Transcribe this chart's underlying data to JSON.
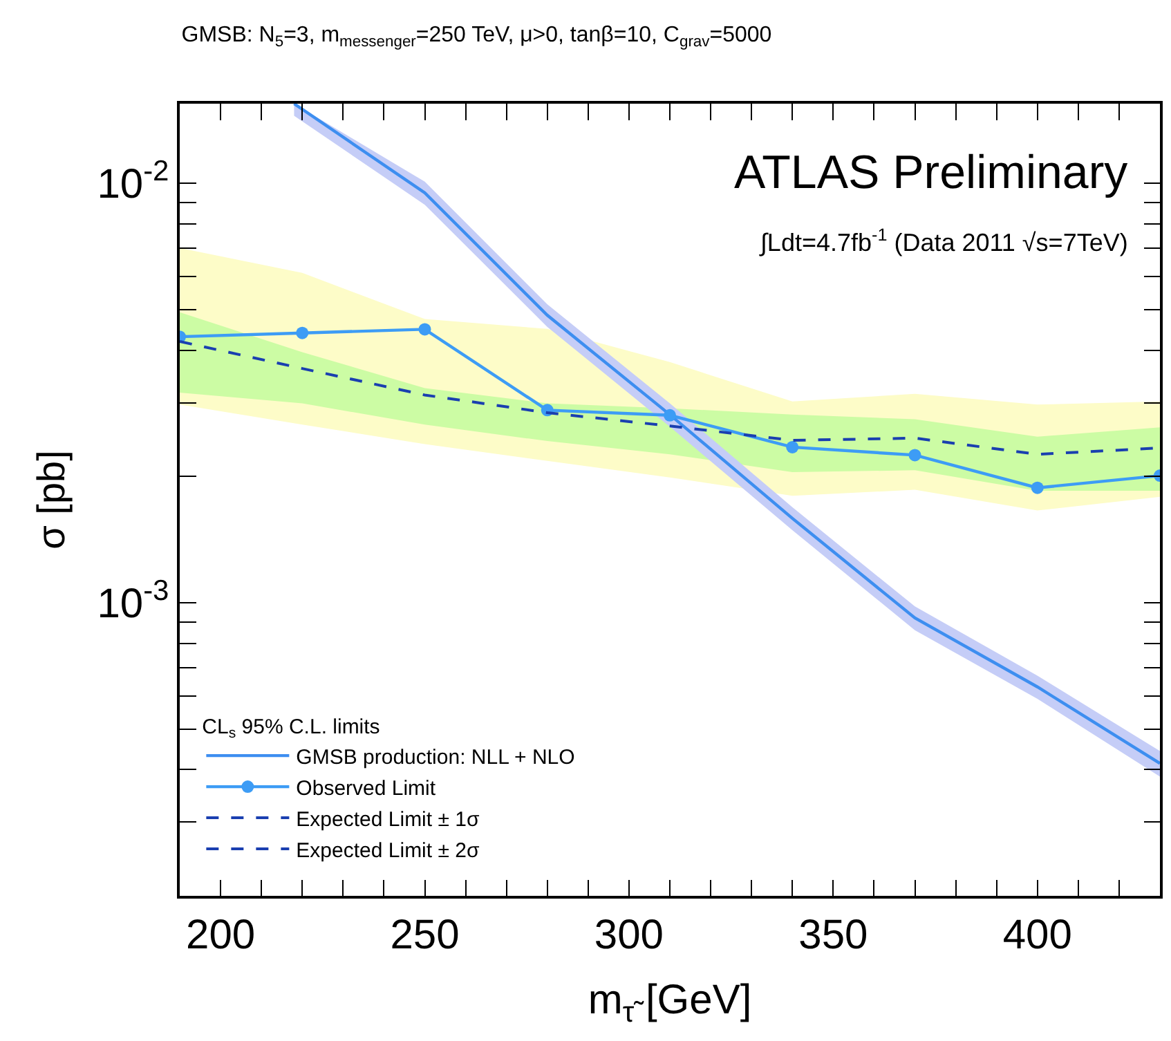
{
  "chart_data": {
    "type": "line",
    "title": "GMSB: N$_{5}$=3, m$_{messenger}$=250 TeV, μ>0, tanβ=10, C$_{grav}$=5000",
    "xlabel": "m$_{τ̃}$ [GeV]",
    "ylabel": "σ [pb]",
    "annotations": [
      "ATLAS Preliminary",
      "∫Ldt=4.7fb$^{-1}$ (Data 2011 √s=7TeV)"
    ],
    "legend_title": "CL$_{s}$ 95% C.L. limits",
    "x": [
      190,
      220,
      250,
      280,
      310,
      340,
      370,
      400,
      430
    ],
    "series": [
      {
        "name": "GMSB production: NLL + NLO",
        "color": "#3d8ef0",
        "x": [
          218,
          250,
          280,
          310,
          340,
          370,
          400,
          430
        ],
        "values": [
          0.0155,
          0.0095,
          0.00485,
          0.00281,
          0.00159,
          0.00092,
          0.00063,
          0.000414
        ],
        "lower": [
          0.0145,
          0.0089,
          0.00455,
          0.00263,
          0.00149,
          0.00086,
          0.00059,
          0.000385
        ],
        "upper": [
          0.0155,
          0.0101,
          0.00515,
          0.00299,
          0.00169,
          0.00098,
          0.00067,
          0.000443
        ]
      },
      {
        "name": "Observed Limit",
        "color": "#3d9cf5",
        "marker": "circle",
        "values": [
          0.00431,
          0.0044,
          0.00449,
          0.00288,
          0.0028,
          0.00235,
          0.00225,
          0.00188,
          0.00201
        ]
      },
      {
        "name": "Expected Limit ± 1σ",
        "color": "#1a3fb0",
        "line_style": "dashed",
        "values": [
          0.0042,
          0.00362,
          0.00313,
          0.00284,
          0.00264,
          0.00244,
          0.00247,
          0.00226,
          0.00234
        ],
        "lower": [
          0.00317,
          0.00299,
          0.00266,
          0.00243,
          0.00226,
          0.00205,
          0.00207,
          0.00185,
          0.00185
        ],
        "upper": [
          0.00493,
          0.00396,
          0.00325,
          0.00299,
          0.00291,
          0.00281,
          0.00274,
          0.00249,
          0.00262
        ]
      },
      {
        "name": "Expected Limit ± 2σ",
        "color": "#1a3fb0",
        "line_style": "dashed",
        "values": [
          null,
          null,
          null,
          null,
          null,
          null,
          null,
          null,
          null
        ],
        "lower": [
          0.00297,
          0.00266,
          0.00239,
          0.00218,
          0.00199,
          0.0018,
          0.00186,
          0.00166,
          0.00179
        ],
        "upper": [
          0.00702,
          0.00612,
          0.00475,
          0.0045,
          0.00375,
          0.00302,
          0.00315,
          0.00297,
          0.00302
        ]
      }
    ],
    "colors": [
      "#c5cdf7",
      "#ccfca4",
      "#fdfcc8"
    ],
    "log": "y",
    "legend": "bottom left",
    "xlim": [
      190,
      430
    ],
    "xticks": [
      200,
      {
        "value": 210,
        "label": null
      },
      {
        "value": 220,
        "label": null
      },
      {
        "value": 230,
        "label": null
      },
      {
        "value": 240,
        "label": null
      },
      250,
      {
        "value": 260,
        "label": null
      },
      {
        "value": 270,
        "label": null
      },
      {
        "value": 280,
        "label": null
      },
      {
        "value": 290,
        "label": null
      },
      300,
      {
        "value": 310,
        "label": null
      },
      {
        "value": 320,
        "label": null
      },
      {
        "value": 330,
        "label": null
      },
      {
        "value": 340,
        "label": null
      },
      350,
      {
        "value": 360,
        "label": null
      },
      {
        "value": 370,
        "label": null
      },
      {
        "value": 380,
        "label": null
      },
      {
        "value": 390,
        "label": null
      },
      400,
      {
        "value": 410,
        "label": null
      },
      {
        "value": 420,
        "label": null
      }
    ],
    "ylim": [
      0.0002,
      0.0155
    ],
    "yticks": [
      {
        "value": 0.0003,
        "label": null
      },
      {
        "value": 0.0004,
        "label": null
      },
      {
        "value": 0.0005,
        "label": null
      },
      {
        "value": 0.0006,
        "label": null
      },
      {
        "value": 0.0007,
        "label": null
      },
      {
        "value": 0.0008,
        "label": null
      },
      {
        "value": 0.0009,
        "label": null
      },
      {
        "value": 0.001,
        "label": "10$^{-3}$"
      },
      {
        "value": 0.002,
        "label": null
      },
      {
        "value": 0.003,
        "label": null
      },
      {
        "value": 0.004,
        "label": null
      },
      {
        "value": 0.005,
        "label": null
      },
      {
        "value": 0.006,
        "label": null
      },
      {
        "value": 0.007,
        "label": null
      },
      {
        "value": 0.008,
        "label": null
      },
      {
        "value": 0.009,
        "label": null
      },
      {
        "value": 0.01,
        "label": "10$^{-2}$"
      }
    ]
  }
}
